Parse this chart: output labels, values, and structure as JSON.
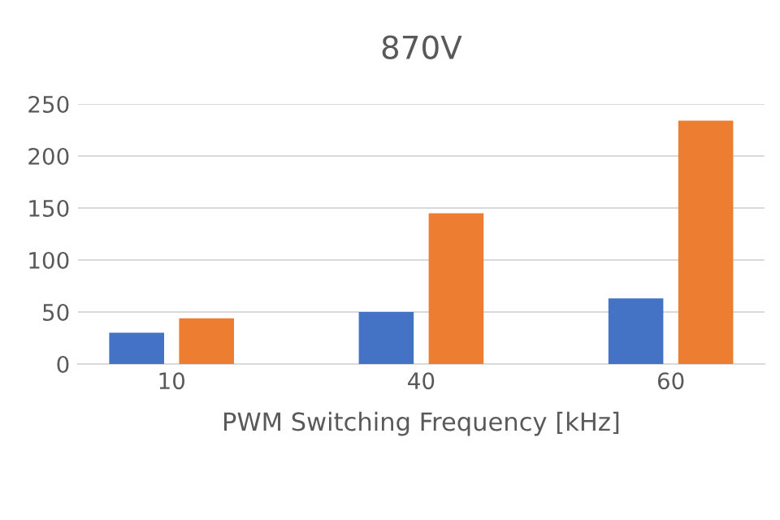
{
  "chart_data": {
    "type": "bar",
    "title": "870V",
    "xlabel": "PWM Switching Frequency [kHz]",
    "categories": [
      "10",
      "40",
      "60"
    ],
    "series": [
      {
        "color": "#4472c4",
        "values": [
          30,
          50,
          63
        ]
      },
      {
        "color": "#ed7d31",
        "values": [
          44,
          145,
          234
        ]
      }
    ],
    "ylim": [
      0,
      250
    ],
    "yticks": [
      0,
      50,
      100,
      150,
      200,
      250
    ],
    "grid": "y"
  }
}
